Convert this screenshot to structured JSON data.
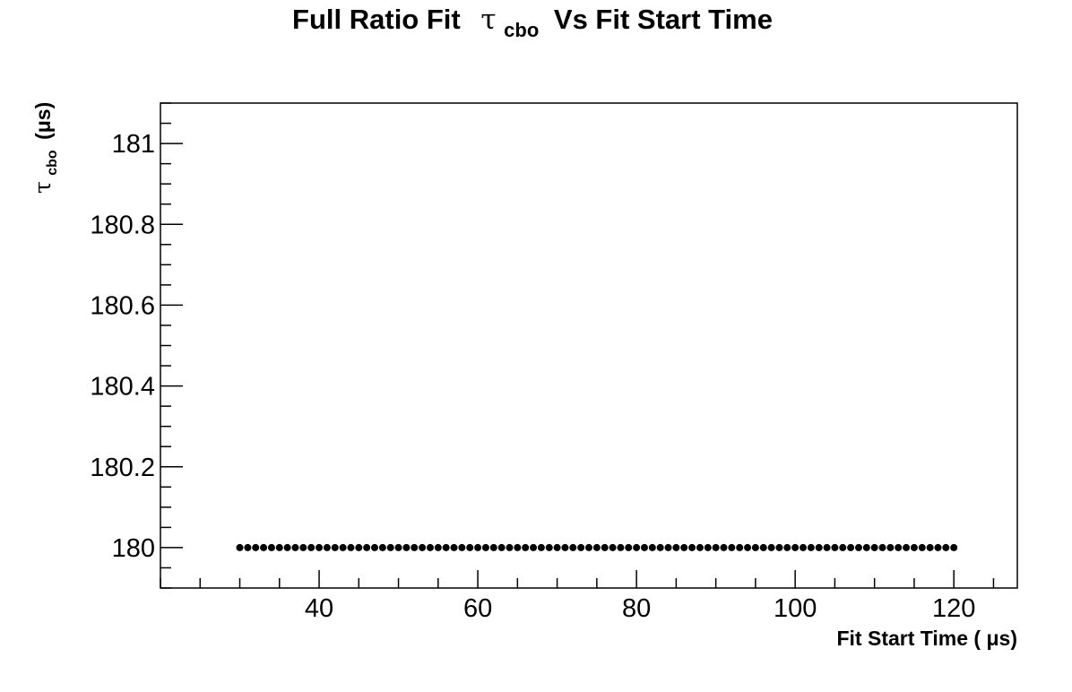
{
  "chart_data": {
    "type": "scatter",
    "title": {
      "prefix": "Full Ratio Fit",
      "symbol": "τ",
      "subscript": "cbo",
      "suffix": "Vs Fit Start Time"
    },
    "xlabel": "Fit Start Time ( μs)",
    "ylabel": {
      "symbol": "τ",
      "subscript": "cbo",
      "suffix": "(μs)"
    },
    "xlim": [
      20,
      128
    ],
    "ylim": [
      179.9,
      181.1
    ],
    "x_ticks": [
      40,
      60,
      80,
      100,
      120
    ],
    "x_tick_labels": [
      "40",
      "60",
      "80",
      "100",
      "120"
    ],
    "y_ticks": [
      180,
      180.2,
      180.4,
      180.6,
      180.8,
      181
    ],
    "y_tick_labels": [
      "180",
      "180.2",
      "180.4",
      "180.6",
      "180.8",
      "181"
    ],
    "grid": false,
    "series": [
      {
        "marker": "circle",
        "color": "#000000",
        "x_start": 30,
        "x_end": 120,
        "x_step": 1,
        "y": 180.0
      }
    ]
  }
}
